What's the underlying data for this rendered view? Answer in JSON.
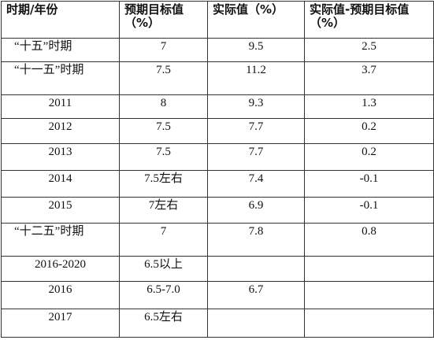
{
  "table": {
    "header": [
      "时期/年份",
      "预期目标值（%）",
      "实际值（%）",
      "实际值-预期目标值（%）"
    ],
    "rows": [
      [
        "“十五”时期",
        "7",
        "9.5",
        "2.5"
      ],
      [
        "“十一五”时期",
        "7.5",
        "11.2",
        "3.7"
      ],
      [
        "2011",
        "8",
        "9.3",
        "1.3"
      ],
      [
        "2012",
        "7.5",
        "7.7",
        "0.2"
      ],
      [
        "2013",
        "7.5",
        "7.7",
        "0.2"
      ],
      [
        "2014",
        "7.5左右",
        "7.4",
        "-0.1"
      ],
      [
        "2015",
        "7左右",
        "6.9",
        "-0.1"
      ],
      [
        "“十二五”时期",
        "7",
        "7.8",
        "0.8"
      ],
      [
        "2016-2020",
        "6.5以上"
      ],
      [
        "2016",
        "6.5-7.0",
        "6.7"
      ],
      [
        "2017",
        "6.5左右"
      ]
    ]
  }
}
